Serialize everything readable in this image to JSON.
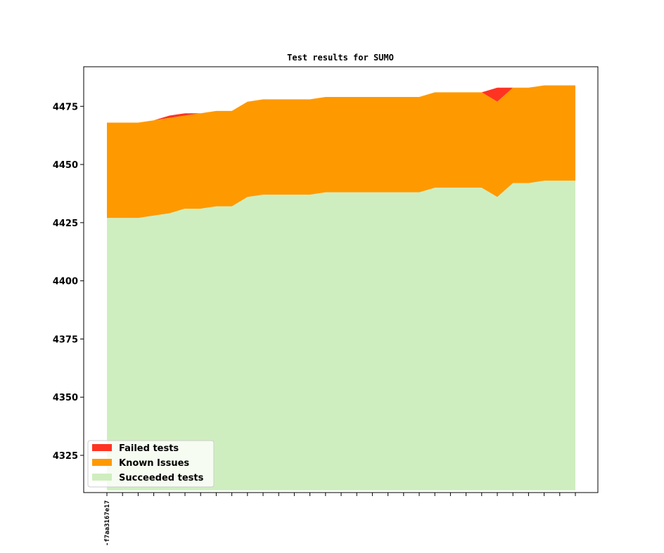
{
  "chart_data": {
    "type": "area",
    "stacked": true,
    "title": "Test results for SUMO",
    "xlabel": "",
    "ylabel": "",
    "ylim": [
      4309,
      4492
    ],
    "yticks": [
      4325,
      4350,
      4375,
      4400,
      4425,
      4450,
      4475
    ],
    "baseline": 4310,
    "x_tick_labels_printed": [
      "-f7aa3167e17"
    ],
    "x": [
      0,
      1,
      2,
      3,
      4,
      5,
      6,
      7,
      8,
      9,
      10,
      11,
      12,
      13,
      14,
      15,
      16,
      17,
      18,
      19,
      20,
      21,
      22,
      23,
      24,
      25,
      26,
      27,
      28,
      29,
      30
    ],
    "series": [
      {
        "name": "Succeeded tests",
        "color": "#cfeebf",
        "values": [
          4427,
          4427,
          4427,
          4428,
          4429,
          4431,
          4431,
          4432,
          4432,
          4436,
          4437,
          4437,
          4437,
          4437,
          4438,
          4438,
          4438,
          4438,
          4438,
          4438,
          4438,
          4440,
          4440,
          4440,
          4440,
          4436,
          4442,
          4442,
          4443,
          4443,
          4443
        ]
      },
      {
        "name": "Known Issues",
        "color": "#ff9900",
        "values": [
          4468,
          4468,
          4468,
          4469,
          4470,
          4471,
          4472,
          4473,
          4473,
          4477,
          4478,
          4478,
          4478,
          4478,
          4479,
          4479,
          4479,
          4479,
          4479,
          4479,
          4479,
          4481,
          4481,
          4481,
          4481,
          4477,
          4483,
          4483,
          4484,
          4484,
          4484
        ]
      },
      {
        "name": "Failed tests",
        "color": "#ff3322",
        "values": [
          4468,
          4468,
          4468,
          4469,
          4471,
          4472,
          4472,
          4473,
          4473,
          4477,
          4478,
          4478,
          4478,
          4478,
          4479,
          4479,
          4479,
          4479,
          4479,
          4479,
          4479,
          4481,
          4481,
          4481,
          4481,
          4483,
          4483,
          4483,
          4484,
          4484,
          4484
        ]
      }
    ],
    "legend": {
      "placement": "lower-left",
      "entries": [
        "Failed tests",
        "Known Issues",
        "Succeeded tests"
      ]
    },
    "grid": false
  }
}
